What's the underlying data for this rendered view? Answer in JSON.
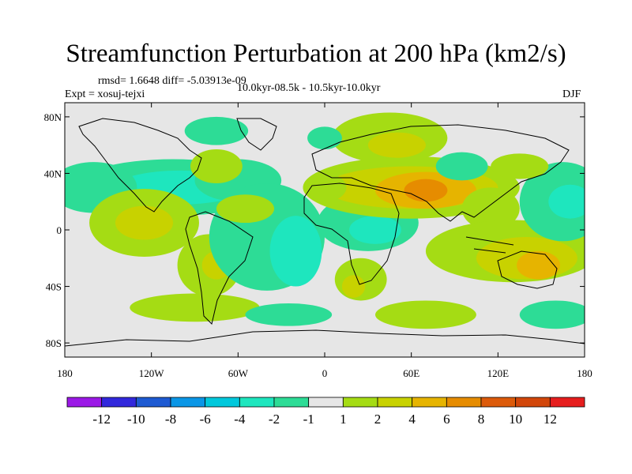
{
  "header": {
    "title": "Streamfunction Perturbation at 200 hPa (km2/s)",
    "stats": "rmsd= 1.6648 diff= -5.03913e-09",
    "experiment": "Expt = xosuj-tejxi",
    "period": "10.0kyr-08.5k - 10.5kyr-10.0kyr",
    "season": "DJF"
  },
  "axes": {
    "lat_labels": [
      "80N",
      "40N",
      "0",
      "40S",
      "80S"
    ],
    "lat_values": [
      80,
      40,
      0,
      -40,
      -80
    ],
    "lon_labels": [
      "180",
      "120W",
      "60W",
      "0",
      "60E",
      "120E",
      "180"
    ],
    "lon_values": [
      -180,
      -120,
      -60,
      0,
      60,
      120,
      180
    ],
    "lat_range": [
      -90,
      90
    ],
    "lon_range": [
      -180,
      180
    ]
  },
  "colorbar": {
    "labels": [
      "-12",
      "-10",
      "-8",
      "-6",
      "-4",
      "-2",
      "-1",
      "1",
      "2",
      "4",
      "6",
      "8",
      "10",
      "12"
    ],
    "colors": [
      "#9b19e6",
      "#3228dc",
      "#1e5ad2",
      "#0a96e6",
      "#00c8dc",
      "#1ee6be",
      "#2ddc96",
      "#e6e6e6",
      "#a5dc14",
      "#c8d200",
      "#e6b400",
      "#e68c00",
      "#dc5a0a",
      "#d2460a",
      "#e61e1e"
    ]
  },
  "field_blobs": [
    {
      "lon": -105,
      "lat": 30,
      "rx": 70,
      "ry": 20,
      "lvl": -1
    },
    {
      "lon": -100,
      "lat": 30,
      "rx": 45,
      "ry": 12,
      "lvl": -2
    },
    {
      "lon": -60,
      "lat": 35,
      "rx": 30,
      "ry": 15,
      "lvl": -1
    },
    {
      "lon": -75,
      "lat": 45,
      "rx": 18,
      "ry": 12,
      "lvl": 1
    },
    {
      "lon": -160,
      "lat": 30,
      "rx": 30,
      "ry": 18,
      "lvl": -1
    },
    {
      "lon": -125,
      "lat": 5,
      "rx": 38,
      "ry": 24,
      "lvl": 1
    },
    {
      "lon": -125,
      "lat": 5,
      "rx": 20,
      "ry": 12,
      "lvl": 2
    },
    {
      "lon": -80,
      "lat": -25,
      "rx": 22,
      "ry": 22,
      "lvl": 1
    },
    {
      "lon": -75,
      "lat": -25,
      "rx": 10,
      "ry": 10,
      "lvl": 2
    },
    {
      "lon": -40,
      "lat": -5,
      "rx": 40,
      "ry": 38,
      "lvl": -1
    },
    {
      "lon": -20,
      "lat": -15,
      "rx": 18,
      "ry": 25,
      "lvl": -2
    },
    {
      "lon": -55,
      "lat": 15,
      "rx": 20,
      "ry": 10,
      "lvl": 1
    },
    {
      "lon": 30,
      "lat": 5,
      "rx": 35,
      "ry": 20,
      "lvl": -1
    },
    {
      "lon": 35,
      "lat": 0,
      "rx": 18,
      "ry": 10,
      "lvl": -2
    },
    {
      "lon": 25,
      "lat": -35,
      "rx": 18,
      "ry": 15,
      "lvl": 1
    },
    {
      "lon": 20,
      "lat": -40,
      "rx": 8,
      "ry": 8,
      "lvl": 2
    },
    {
      "lon": 60,
      "lat": 30,
      "rx": 75,
      "ry": 22,
      "lvl": 1
    },
    {
      "lon": 60,
      "lat": 30,
      "rx": 60,
      "ry": 15,
      "lvl": 2
    },
    {
      "lon": 70,
      "lat": 28,
      "rx": 35,
      "ry": 13,
      "lvl": 4
    },
    {
      "lon": 70,
      "lat": 28,
      "rx": 15,
      "ry": 8,
      "lvl": 6
    },
    {
      "lon": 45,
      "lat": 65,
      "rx": 40,
      "ry": 18,
      "lvl": 1
    },
    {
      "lon": 50,
      "lat": 60,
      "rx": 20,
      "ry": 9,
      "lvl": 2
    },
    {
      "lon": 0,
      "lat": 65,
      "rx": 12,
      "ry": 8,
      "lvl": -1
    },
    {
      "lon": -75,
      "lat": 70,
      "rx": 22,
      "ry": 10,
      "lvl": -1
    },
    {
      "lon": 95,
      "lat": 45,
      "rx": 18,
      "ry": 10,
      "lvl": -1
    },
    {
      "lon": 115,
      "lat": 15,
      "rx": 20,
      "ry": 15,
      "lvl": 1
    },
    {
      "lon": 130,
      "lat": -15,
      "rx": 60,
      "ry": 22,
      "lvl": 1
    },
    {
      "lon": 140,
      "lat": -20,
      "rx": 35,
      "ry": 15,
      "lvl": 2
    },
    {
      "lon": 148,
      "lat": -25,
      "rx": 15,
      "ry": 10,
      "lvl": 4
    },
    {
      "lon": 165,
      "lat": 20,
      "rx": 30,
      "ry": 28,
      "lvl": -1
    },
    {
      "lon": 170,
      "lat": 20,
      "rx": 15,
      "ry": 12,
      "lvl": -2
    },
    {
      "lon": 135,
      "lat": 45,
      "rx": 20,
      "ry": 9,
      "lvl": 1
    },
    {
      "lon": -90,
      "lat": -55,
      "rx": 45,
      "ry": 10,
      "lvl": 1
    },
    {
      "lon": -25,
      "lat": -60,
      "rx": 30,
      "ry": 8,
      "lvl": -1
    },
    {
      "lon": 70,
      "lat": -60,
      "rx": 35,
      "ry": 10,
      "lvl": 1
    },
    {
      "lon": 160,
      "lat": -60,
      "rx": 25,
      "ry": 10,
      "lvl": -1
    },
    {
      "lon": 0,
      "lat": 30,
      "rx": 15,
      "ry": 10,
      "lvl": 1
    }
  ]
}
